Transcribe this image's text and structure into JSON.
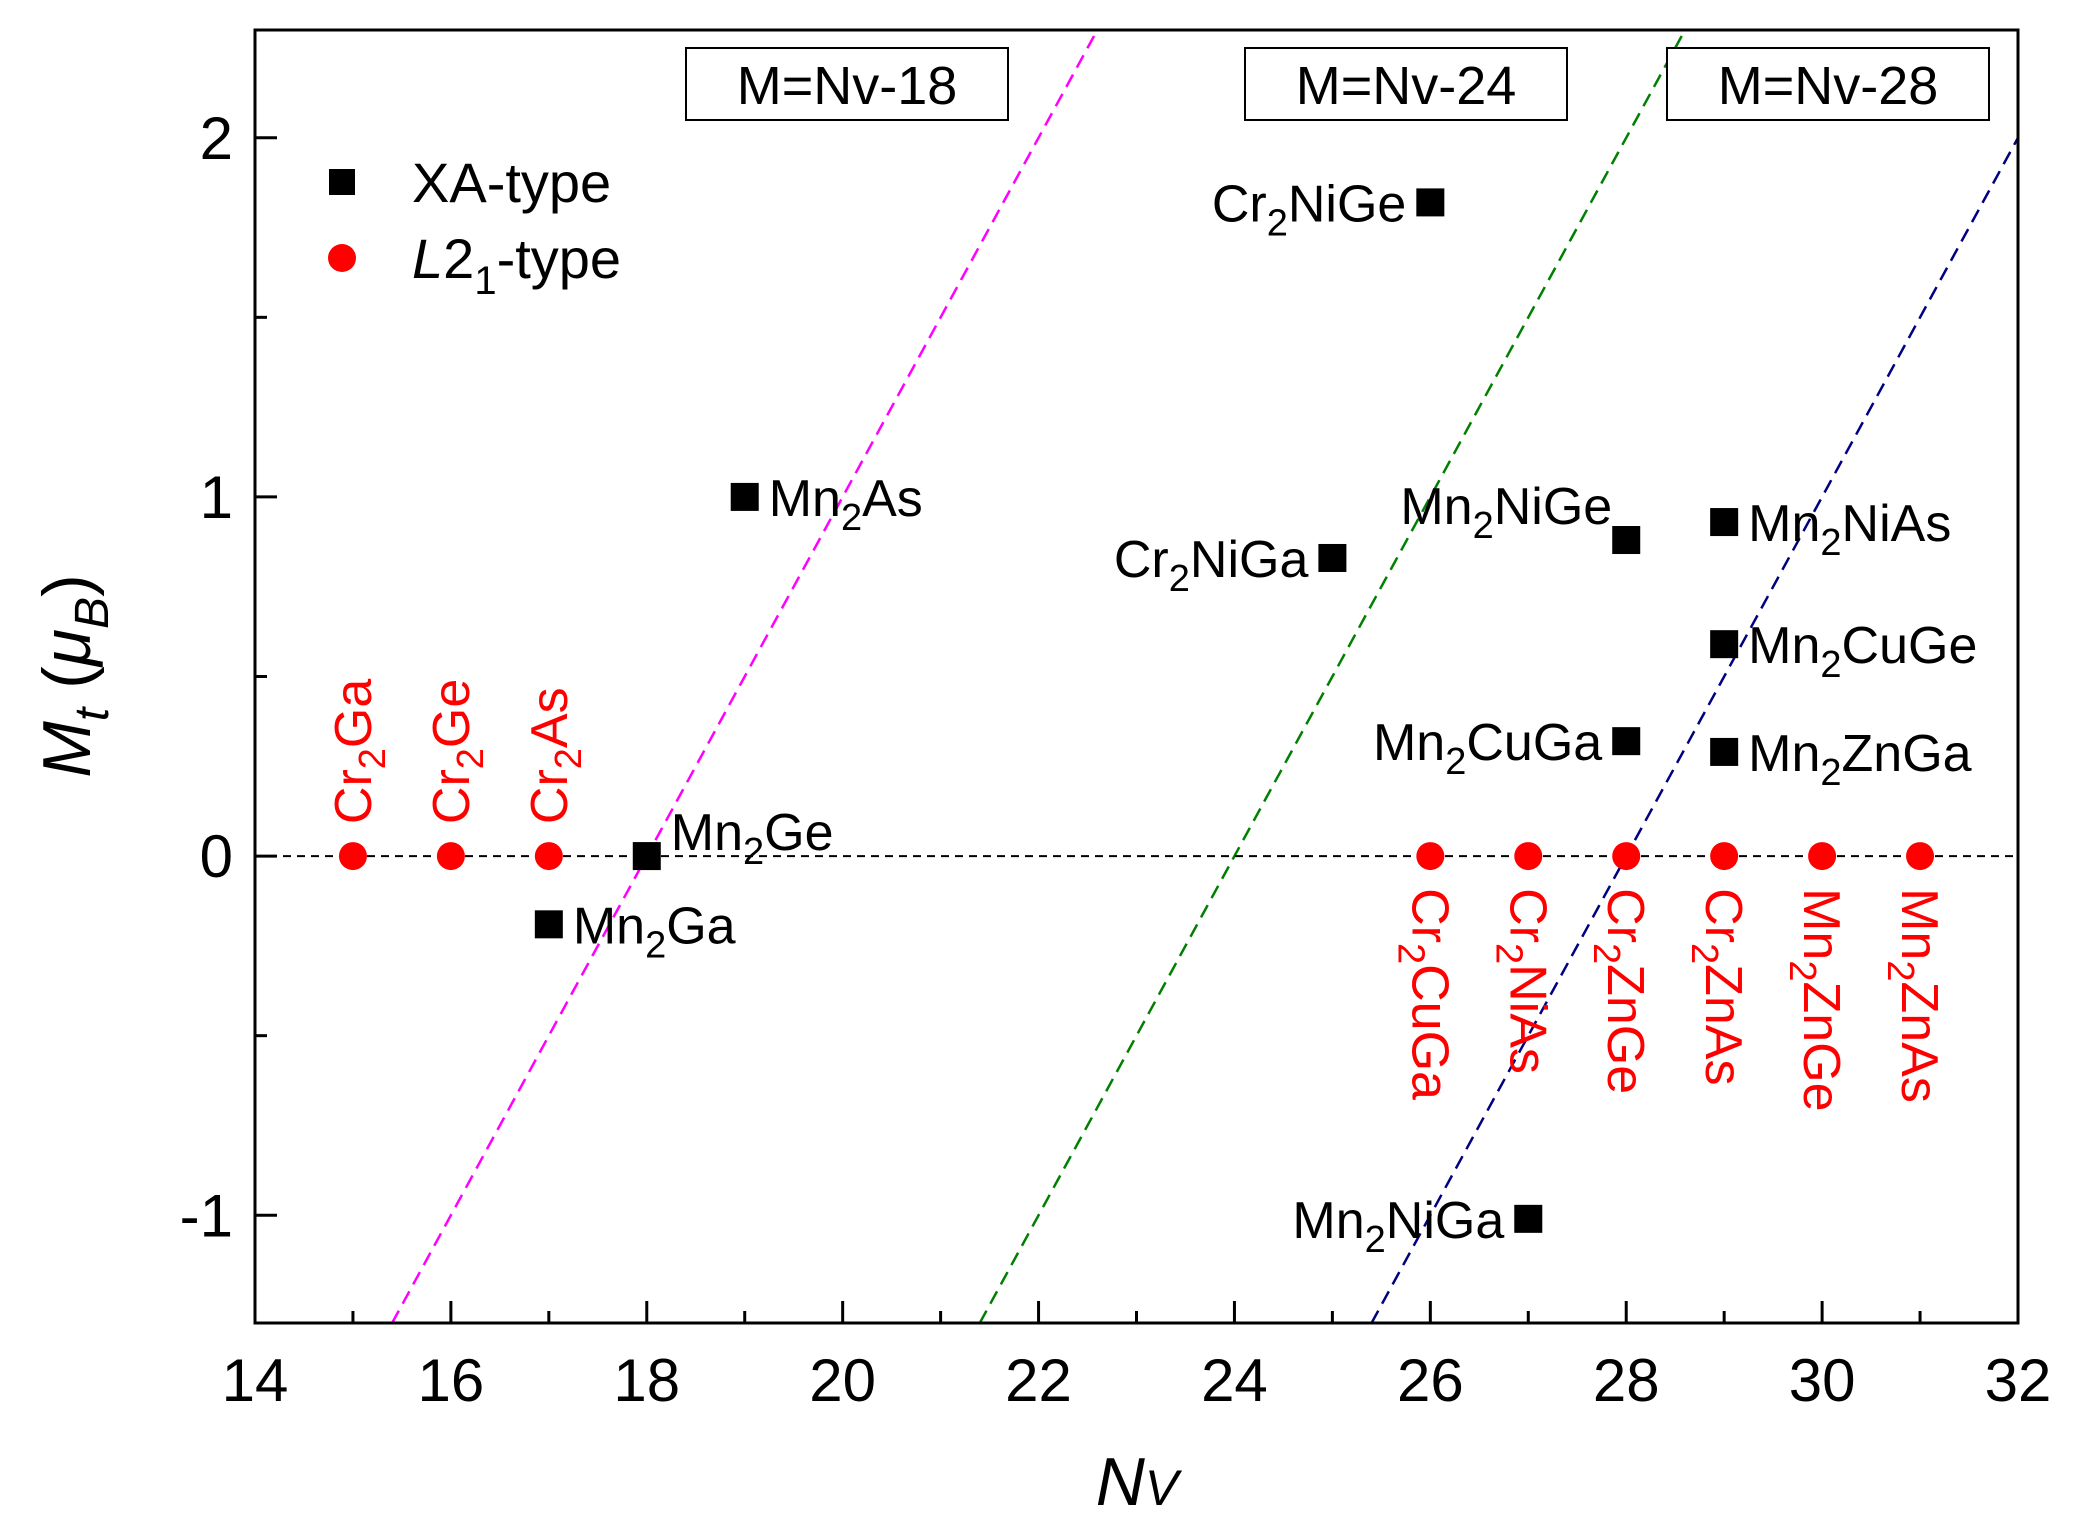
{
  "chart_data": {
    "type": "scatter",
    "xlabel": "N",
    "xlabel_sub": "V",
    "ylabel": "M",
    "ylabel_sub": "t",
    "ylabel_unit_open": " (",
    "ylabel_unit": "μ",
    "ylabel_unit_sub": "B",
    "ylabel_unit_close": ")",
    "xlim": [
      14,
      32
    ],
    "ylim": [
      -1.3,
      2.3
    ],
    "x_ticks": [
      14,
      16,
      18,
      20,
      22,
      24,
      26,
      28,
      30,
      32
    ],
    "x_tick_labels": [
      "14",
      "16",
      "18",
      "20",
      "22",
      "24",
      "26",
      "28",
      "30",
      "32"
    ],
    "y_ticks": [
      -1,
      0,
      1,
      2
    ],
    "y_tick_labels": [
      "-1",
      "0",
      "1",
      "2"
    ],
    "grid": false,
    "legend": {
      "position": "top-left",
      "entries": [
        {
          "label": "XA-type",
          "marker": "square",
          "color": "#000000"
        },
        {
          "label_main": "L",
          "label_rest": "2",
          "label_sub": "1",
          "label_tail": "-type",
          "marker": "circle",
          "color": "#ff0000"
        }
      ]
    },
    "series": [
      {
        "name": "XA-type",
        "marker": "square",
        "color": "#000000",
        "points": [
          {
            "x": 17,
            "y": -0.19,
            "el1": "Mn",
            "sub": "2",
            "el2": "Ga",
            "pos": "right"
          },
          {
            "x": 18,
            "y": 0.0,
            "el1": "Mn",
            "sub": "2",
            "el2": "Ge",
            "pos": "right-up"
          },
          {
            "x": 19,
            "y": 1.0,
            "el1": "Mn",
            "sub": "2",
            "el2": "As",
            "pos": "right"
          },
          {
            "x": 25,
            "y": 0.83,
            "el1": "Cr",
            "sub": "2",
            "el2": "NiGa",
            "pos": "left"
          },
          {
            "x": 26,
            "y": 1.82,
            "el1": "Cr",
            "sub": "2",
            "el2": "NiGe",
            "pos": "left"
          },
          {
            "x": 27,
            "y": -1.01,
            "el1": "Mn",
            "sub": "2",
            "el2": "NiGa",
            "pos": "left"
          },
          {
            "x": 28,
            "y": 0.32,
            "el1": "Mn",
            "sub": "2",
            "el2": "CuGa",
            "pos": "left"
          },
          {
            "x": 28,
            "y": 0.88,
            "el1": "Mn",
            "sub": "2",
            "el2": "NiGe",
            "pos": "left-up"
          },
          {
            "x": 29,
            "y": 0.29,
            "el1": "Mn",
            "sub": "2",
            "el2": "ZnGa",
            "pos": "right"
          },
          {
            "x": 29,
            "y": 0.59,
            "el1": "Mn",
            "sub": "2",
            "el2": "CuGe",
            "pos": "right"
          },
          {
            "x": 29,
            "y": 0.93,
            "el1": "Mn",
            "sub": "2",
            "el2": "NiAs",
            "pos": "right"
          }
        ]
      },
      {
        "name": "L2₁-type",
        "marker": "circle",
        "color": "#ff0000",
        "points": [
          {
            "x": 15,
            "y": 0,
            "el1": "Cr",
            "sub": "2",
            "el2": "Ga",
            "pos": "vertical-up"
          },
          {
            "x": 16,
            "y": 0,
            "el1": "Cr",
            "sub": "2",
            "el2": "Ge",
            "pos": "vertical-up"
          },
          {
            "x": 17,
            "y": 0,
            "el1": "Cr",
            "sub": "2",
            "el2": "As",
            "pos": "vertical-up"
          },
          {
            "x": 26,
            "y": 0,
            "el1": "Cr",
            "sub": "2",
            "el2": "CuGa",
            "pos": "vertical-down"
          },
          {
            "x": 27,
            "y": 0,
            "el1": "Cr",
            "sub": "2",
            "el2": "NiAs",
            "pos": "vertical-down"
          },
          {
            "x": 28,
            "y": 0,
            "el1": "Cr",
            "sub": "2",
            "el2": "ZnGe",
            "pos": "vertical-down"
          },
          {
            "x": 29,
            "y": 0,
            "el1": "Cr",
            "sub": "2",
            "el2": "ZnAs",
            "pos": "vertical-down"
          },
          {
            "x": 30,
            "y": 0,
            "el1": "Mn",
            "sub": "2",
            "el2": "ZnGe",
            "pos": "vertical-down"
          },
          {
            "x": 31,
            "y": 0,
            "el1": "Mn",
            "sub": "2",
            "el2": "ZnAs",
            "pos": "vertical-down"
          }
        ]
      }
    ],
    "reference_lines": [
      {
        "label": "M=Nv-18",
        "offset": 18,
        "color": "#ff00ff"
      },
      {
        "label": "M=Nv-24",
        "offset": 24,
        "color": "#008000"
      },
      {
        "label": "M=Nv-28",
        "offset": 28,
        "color": "#000080"
      }
    ],
    "zero_line": {
      "y": 0,
      "color": "#000000",
      "style": "dashed"
    }
  }
}
